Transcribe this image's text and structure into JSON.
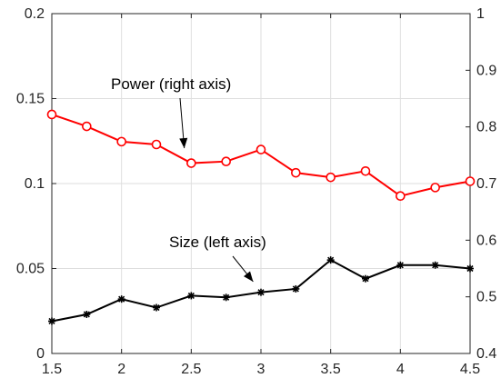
{
  "chart_data": {
    "type": "line",
    "grid": true,
    "x": [
      1.5,
      1.75,
      2,
      2.25,
      2.5,
      2.75,
      3,
      3.25,
      3.5,
      3.75,
      4,
      4.25,
      4.5
    ],
    "xlim": [
      1.5,
      4.5
    ],
    "xticks": [
      "1.5",
      "2",
      "2.5",
      "3",
      "3.5",
      "4",
      "4.5"
    ],
    "left_axis": {
      "ylim": [
        0,
        0.2
      ],
      "ticks": [
        "0",
        "0.05",
        "0.1",
        "0.15",
        "0.2"
      ]
    },
    "right_axis": {
      "ylim": [
        0.4,
        1
      ],
      "ticks": [
        "0.4",
        "0.5",
        "0.6",
        "0.7",
        "0.8",
        "0.9",
        "1"
      ]
    },
    "series": [
      {
        "axis": "right",
        "color": "#ff0000",
        "marker": "circle",
        "values": [
          0.822,
          0.801,
          0.774,
          0.769,
          0.736,
          0.739,
          0.76,
          0.719,
          0.711,
          0.722,
          0.678,
          0.693,
          0.704
        ]
      },
      {
        "axis": "left",
        "color": "#000000",
        "marker": "asterisk",
        "values": [
          0.019,
          0.023,
          0.032,
          0.027,
          0.034,
          0.033,
          0.036,
          0.038,
          0.055,
          0.044,
          0.052,
          0.052,
          0.05
        ]
      }
    ],
    "annotations": [
      {
        "text": "Power (right axis)",
        "arrow_to": {
          "x": 2.45,
          "y_right": 0.74
        }
      },
      {
        "text": "Size (left axis)",
        "arrow_to": {
          "x": 2.97,
          "y_left": 0.038
        }
      }
    ]
  }
}
